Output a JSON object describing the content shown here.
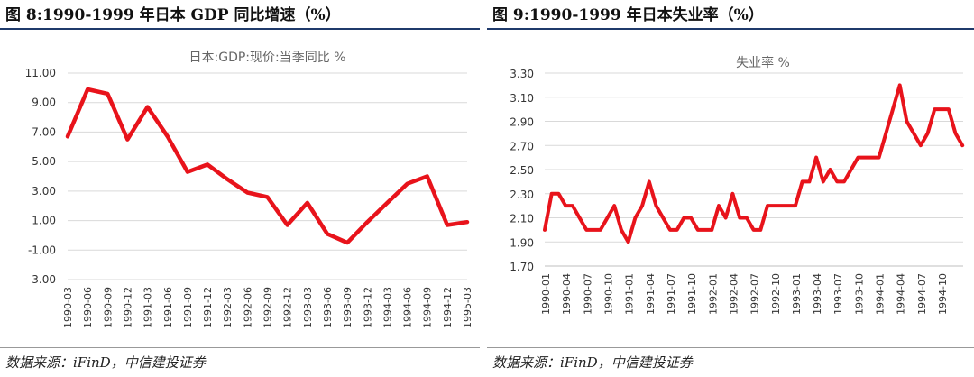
{
  "left": {
    "fig_title": "图 8:1990-1999 年日本 GDP 同比增速（%）",
    "source": "数据来源：iFinD，中信建投证券"
  },
  "right": {
    "fig_title": "图 9:1990-1999 年日本失业率（%）",
    "source": "数据来源：iFinD，中信建投证券"
  },
  "chart_data": [
    {
      "type": "line",
      "title": "日本:GDP:现价:当季同比 %",
      "color": "#e8131b",
      "ylim": [
        -3,
        11
      ],
      "yticks": [
        "11.00",
        "9.00",
        "7.00",
        "5.00",
        "3.00",
        "1.00",
        "-1.00",
        "-3.00"
      ],
      "x_tick_labels": [
        "1990-03",
        "1990-06",
        "1990-09",
        "1990-12",
        "1991-03",
        "1991-06",
        "1991-09",
        "1991-12",
        "1992-03",
        "1992-06",
        "1992-09",
        "1992-12",
        "1993-03",
        "1993-06",
        "1993-09",
        "1993-12",
        "1994-03",
        "1994-06",
        "1994-09",
        "1994-12",
        "1995-03"
      ],
      "x": [
        "1990-03",
        "1990-06",
        "1990-09",
        "1990-12",
        "1991-03",
        "1991-06",
        "1991-09",
        "1991-12",
        "1992-03",
        "1992-06",
        "1992-09",
        "1992-12",
        "1993-03",
        "1993-06",
        "1993-09",
        "1993-12",
        "1994-03",
        "1994-06",
        "1994-09",
        "1994-12",
        "1995-03"
      ],
      "values": [
        6.7,
        9.9,
        9.6,
        6.5,
        8.7,
        6.7,
        4.3,
        4.8,
        3.8,
        2.9,
        2.6,
        0.7,
        2.2,
        0.1,
        -0.5,
        0.9,
        2.2,
        3.5,
        4.0,
        0.7,
        0.9
      ],
      "grid": true
    },
    {
      "type": "line",
      "title": "失业率 %",
      "color": "#e8131b",
      "ylim": [
        1.7,
        3.3
      ],
      "yticks": [
        "3.30",
        "3.10",
        "2.90",
        "2.70",
        "2.50",
        "2.30",
        "2.10",
        "1.90",
        "1.70"
      ],
      "x_tick_labels": [
        "1990-01",
        "1990-04",
        "1990-07",
        "1990-10",
        "1991-01",
        "1991-04",
        "1991-07",
        "1991-10",
        "1992-01",
        "1992-04",
        "1992-07",
        "1992-10",
        "1993-01",
        "1993-04",
        "1993-07",
        "1993-10",
        "1994-01",
        "1994-04",
        "1994-07",
        "1994-10"
      ],
      "x_start": "1990-01",
      "values": [
        2.0,
        2.3,
        2.3,
        2.2,
        2.2,
        2.1,
        2.0,
        2.0,
        2.0,
        2.1,
        2.2,
        2.0,
        1.9,
        2.1,
        2.2,
        2.4,
        2.2,
        2.1,
        2.0,
        2.0,
        2.1,
        2.1,
        2.0,
        2.0,
        2.0,
        2.2,
        2.1,
        2.3,
        2.1,
        2.1,
        2.0,
        2.0,
        2.2,
        2.2,
        2.2,
        2.2,
        2.2,
        2.4,
        2.4,
        2.6,
        2.4,
        2.5,
        2.4,
        2.4,
        2.5,
        2.6,
        2.6,
        2.6,
        2.6,
        2.8,
        3.0,
        3.2,
        2.9,
        2.8,
        2.7,
        2.8,
        3.0,
        3.0,
        3.0,
        2.8,
        2.7
      ],
      "grid": true
    }
  ]
}
